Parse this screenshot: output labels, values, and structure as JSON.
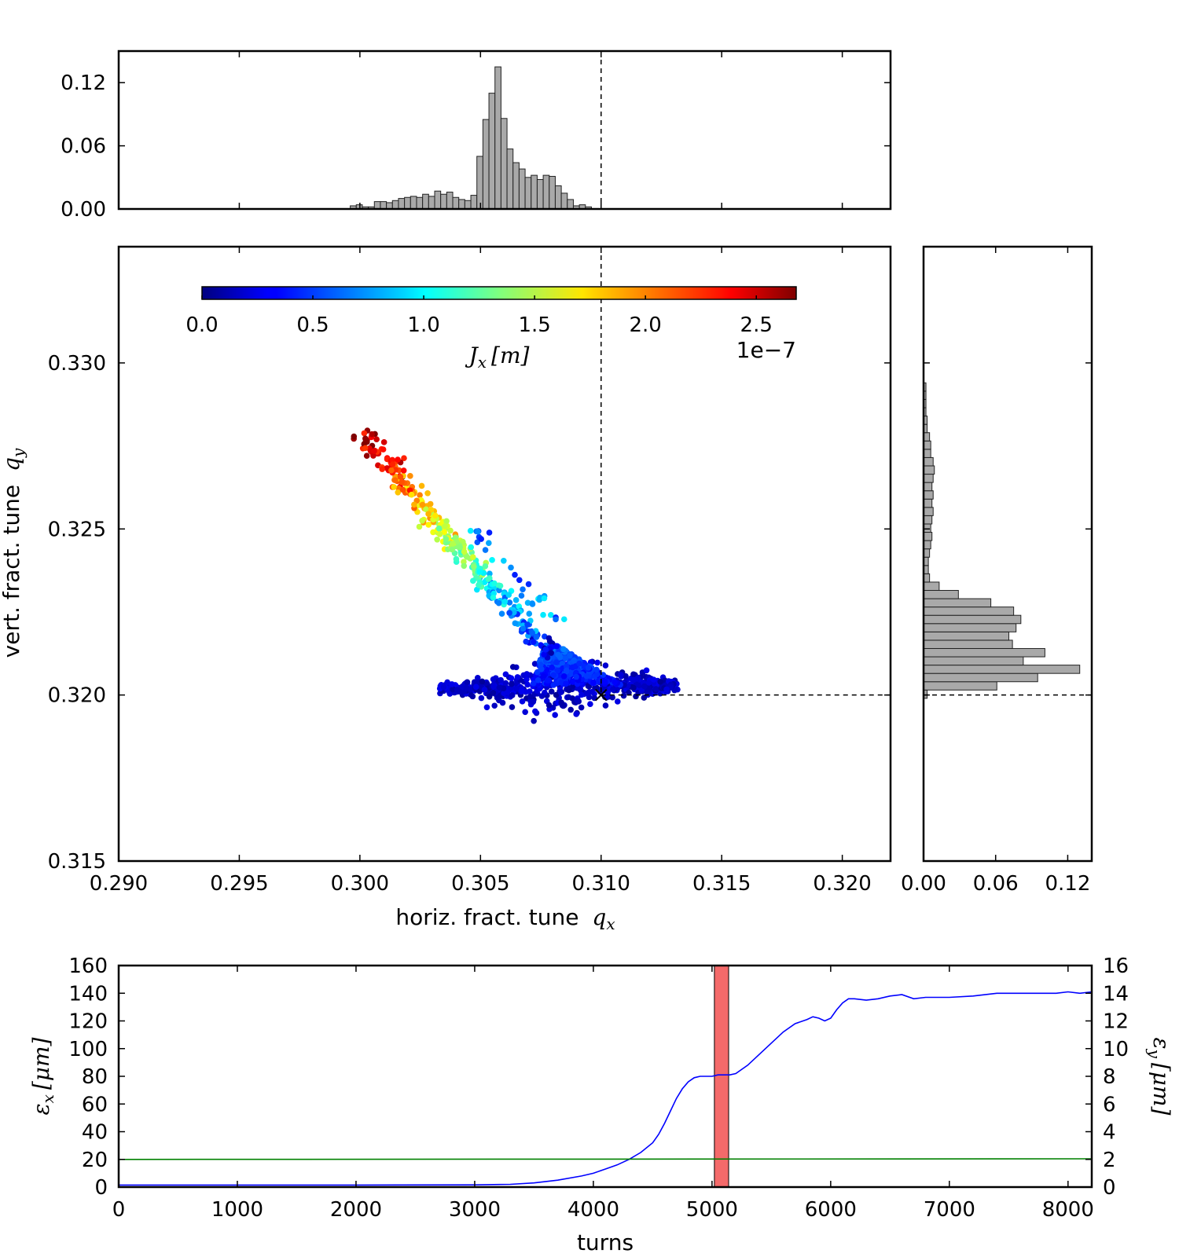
{
  "chart_data": [
    {
      "id": "top-histogram",
      "type": "bar",
      "description_axis": "horizontal fractional tune histogram",
      "xlim": [
        0.29,
        0.322
      ],
      "ylim": [
        0.0,
        0.15
      ],
      "yticks": [
        "0.12",
        "0.06",
        "0.00"
      ],
      "ytick_values": [
        0.12,
        0.06,
        0.0
      ],
      "bin_start": 0.2996,
      "bin_width": 0.00025,
      "values": [
        0.003,
        0.004,
        0.002,
        0.002,
        0.007,
        0.007,
        0.006,
        0.008,
        0.01,
        0.011,
        0.012,
        0.011,
        0.014,
        0.012,
        0.017,
        0.014,
        0.016,
        0.011,
        0.009,
        0.008,
        0.013,
        0.05,
        0.085,
        0.11,
        0.135,
        0.086,
        0.057,
        0.044,
        0.038,
        0.03,
        0.032,
        0.028,
        0.032,
        0.031,
        0.022,
        0.015,
        0.009,
        0.003,
        0.004,
        0.002
      ],
      "reference_line_x": 0.31
    },
    {
      "id": "main-scatter",
      "type": "scatter",
      "xlabel": "horiz. fract. tune",
      "xlabel_math": "q",
      "xlabel_sub": "x",
      "ylabel": "vert. fract. tune",
      "ylabel_math": "q",
      "ylabel_sub": "y",
      "xlim": [
        0.29,
        0.322
      ],
      "ylim": [
        0.315,
        0.3335
      ],
      "xticks": [
        "0.290",
        "0.295",
        "0.300",
        "0.305",
        "0.310",
        "0.315",
        "0.320"
      ],
      "xtick_values": [
        0.29,
        0.295,
        0.3,
        0.305,
        0.31,
        0.315,
        0.32
      ],
      "yticks": [
        "0.315",
        "0.320",
        "0.325",
        "0.330"
      ],
      "ytick_values": [
        0.315,
        0.32,
        0.325,
        0.33
      ],
      "reference_point": [
        0.31,
        0.32
      ],
      "colorbar": {
        "label_math": "J",
        "label_sub": "x",
        "label_unit": "[m]",
        "min": 0.0,
        "max": 2.68,
        "ticks": [
          "0.0",
          "0.5",
          "1.0",
          "1.5",
          "2.0",
          "2.5"
        ],
        "tick_values": [
          0.0,
          0.5,
          1.0,
          1.5,
          2.0,
          2.5
        ],
        "offset_label": "1e−7",
        "colormap": "jet"
      },
      "arm": {
        "start": [
          0.3,
          0.3279
        ],
        "end": [
          0.3078,
          0.3213
        ],
        "j_start": 2.6,
        "j_end": 0.3
      },
      "core": {
        "x_range": [
          0.3033,
          0.3132
        ],
        "y_center": 0.3202
      }
    },
    {
      "id": "right-histogram",
      "type": "bar",
      "orientation": "horizontal",
      "xlim": [
        0.0,
        0.14
      ],
      "xticks": [
        "0.00",
        "0.06",
        "0.12"
      ],
      "xtick_values": [
        0.0,
        0.06,
        0.12
      ],
      "bin_start": 0.3199,
      "bin_width": 0.00025,
      "values": [
        0.003,
        0.061,
        0.095,
        0.13,
        0.083,
        0.101,
        0.074,
        0.071,
        0.077,
        0.081,
        0.075,
        0.056,
        0.029,
        0.013,
        0.005,
        0.004,
        0.004,
        0.005,
        0.006,
        0.007,
        0.006,
        0.007,
        0.008,
        0.007,
        0.008,
        0.007,
        0.008,
        0.009,
        0.008,
        0.006,
        0.006,
        0.005,
        0.003,
        0.003,
        0.002,
        0.002,
        0.002,
        0.002
      ],
      "reference_line_y": 0.32
    },
    {
      "id": "emittance-plot",
      "type": "line",
      "xlabel": "turns",
      "ylabel_left_math": "ε",
      "ylabel_left_sub": "x",
      "ylabel_right_math": "ε",
      "ylabel_right_sub": "y",
      "ylabel_unit": "[μm]",
      "xlim": [
        0,
        8200
      ],
      "ylim_left": [
        0,
        160
      ],
      "ylim_right": [
        0,
        16
      ],
      "xticks": [
        "0",
        "1000",
        "2000",
        "3000",
        "4000",
        "5000",
        "6000",
        "7000",
        "8000"
      ],
      "xtick_values": [
        0,
        1000,
        2000,
        3000,
        4000,
        5000,
        6000,
        7000,
        8000
      ],
      "yticks_left": [
        "0",
        "20",
        "40",
        "60",
        "80",
        "100",
        "120",
        "140",
        "160"
      ],
      "ytick_values_left": [
        0,
        20,
        40,
        60,
        80,
        100,
        120,
        140,
        160
      ],
      "yticks_right": [
        "0",
        "2",
        "4",
        "6",
        "8",
        "10",
        "12",
        "14",
        "16"
      ],
      "ytick_values_right": [
        0,
        2,
        4,
        6,
        8,
        10,
        12,
        14,
        16
      ],
      "highlight_band": [
        5020,
        5140
      ],
      "highlight_color": "#f46a6a",
      "series": [
        {
          "color": "#0000ff",
          "x": [
            0,
            1000,
            2000,
            3000,
            3300,
            3500,
            3700,
            3900,
            4000,
            4100,
            4200,
            4300,
            4400,
            4500,
            4550,
            4600,
            4650,
            4700,
            4750,
            4800,
            4850,
            4900,
            4950,
            5000,
            5050,
            5100,
            5150,
            5200,
            5300,
            5400,
            5500,
            5600,
            5700,
            5800,
            5850,
            5900,
            5950,
            6000,
            6050,
            6100,
            6150,
            6200,
            6300,
            6400,
            6500,
            6600,
            6700,
            6800,
            7000,
            7200,
            7400,
            7600,
            7800,
            7900,
            8000,
            8100,
            8200
          ],
          "y": [
            1.5,
            1.5,
            1.5,
            1.6,
            2,
            3,
            5,
            8,
            10,
            13,
            16,
            20,
            25,
            32,
            38,
            46,
            55,
            64,
            71,
            76,
            79,
            80,
            80,
            80,
            81,
            81,
            81,
            82,
            88,
            96,
            104,
            112,
            118,
            121,
            123,
            122,
            120,
            122,
            128,
            133,
            136,
            136,
            135,
            136,
            138,
            139,
            136,
            137,
            137,
            138,
            140,
            140,
            140,
            140,
            141,
            140,
            141
          ]
        },
        {
          "color": "#008000",
          "x": [
            0,
            8200
          ],
          "y": [
            20,
            20.4
          ]
        }
      ]
    }
  ]
}
